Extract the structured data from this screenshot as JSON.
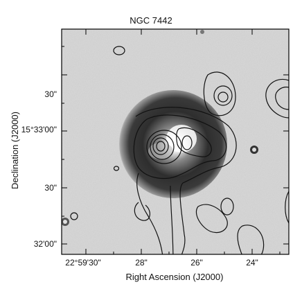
{
  "title": "NGC 7442",
  "xlabel": "Right Ascension (J2000)",
  "ylabel": "Declination (J2000)",
  "yticks": [
    "30\"",
    "15°33'00\"",
    "30\"",
    "32'00\""
  ],
  "xticks": [
    "22°59'30\"",
    "28\"",
    "26\"",
    "24\""
  ]
}
